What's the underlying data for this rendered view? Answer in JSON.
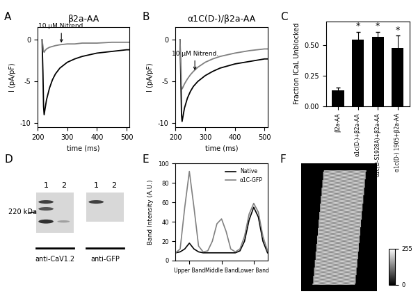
{
  "chart_data": [
    {
      "panel": "A",
      "type": "line",
      "title": "β2a-AA",
      "x_label": "time (ms)",
      "y_label": "I (pA/pF)",
      "x": [
        215,
        218,
        220,
        222,
        225,
        230,
        240,
        250,
        260,
        275,
        300,
        325,
        350,
        400,
        450,
        500,
        510
      ],
      "series": [
        {
          "color": "#000000",
          "values": [
            0,
            -4,
            -8,
            -9,
            -8.3,
            -7.2,
            -5.8,
            -4.8,
            -4.1,
            -3.4,
            -2.7,
            -2.3,
            -2.0,
            -1.6,
            -1.4,
            -1.2,
            -1.2
          ]
        },
        {
          "color": "#808080",
          "values": [
            0,
            -0.8,
            -1.4,
            -1.5,
            -1.3,
            -1.1,
            -0.9,
            -0.8,
            -0.7,
            -0.6,
            -0.5,
            -0.5,
            -0.4,
            -0.4,
            -0.3,
            -0.3,
            -0.3
          ]
        }
      ],
      "annotations": [
        {
          "text": "10 μM Nitrend.",
          "x": 280,
          "y": -0.6
        }
      ],
      "xlim": [
        200,
        510
      ],
      "xticks": [
        200,
        300,
        400,
        500
      ],
      "ylim": [
        -10.5,
        1.5
      ],
      "yticks": [
        -10,
        -5,
        0
      ]
    },
    {
      "panel": "B",
      "type": "line",
      "title": "α1C(D-)/β2a-AA",
      "x_label": "time (ms)",
      "y_label": "I (pA/pF)",
      "x": [
        215,
        218,
        220,
        222,
        225,
        230,
        240,
        250,
        260,
        275,
        300,
        325,
        350,
        400,
        450,
        500,
        510
      ],
      "series": [
        {
          "color": "#000000",
          "values": [
            0,
            -5,
            -9,
            -9.8,
            -9.2,
            -8.2,
            -7.0,
            -6.2,
            -5.6,
            -5.0,
            -4.3,
            -3.8,
            -3.4,
            -2.9,
            -2.6,
            -2.3,
            -2.3
          ]
        },
        {
          "color": "#808080",
          "values": [
            0,
            -3,
            -5.5,
            -5.9,
            -5.7,
            -5.3,
            -4.7,
            -4.2,
            -3.8,
            -3.3,
            -2.7,
            -2.3,
            -2.0,
            -1.6,
            -1.3,
            -1.1,
            -1.1
          ]
        }
      ],
      "annotations": [
        {
          "text": "10 μM Nitrend.",
          "x": 265,
          "y": -3.9
        }
      ],
      "xlim": [
        200,
        510
      ],
      "xticks": [
        200,
        300,
        400,
        500
      ],
      "ylim": [
        -10.5,
        1.5
      ],
      "yticks": [
        -10,
        -5,
        0
      ]
    },
    {
      "panel": "C",
      "type": "bar",
      "y_label": "Fraction ICaL Unblocked",
      "categories": [
        "β2a-AA",
        "α1c(D-)+β2a-AA",
        "α1c(D-S1928A)+β2a-AA",
        "α1c(D-) 1905+β2a-AA"
      ],
      "values": [
        0.13,
        0.55,
        0.57,
        0.48
      ],
      "errors": [
        0.02,
        0.06,
        0.04,
        0.1
      ],
      "marks": [
        null,
        "*",
        "*",
        "*"
      ],
      "color": "#000000",
      "ylim": [
        0,
        0.7
      ],
      "yticks": [
        {
          "value": 0,
          "label": "0.00"
        },
        {
          "value": 0.25,
          "label": "0.25"
        },
        {
          "value": 0.5,
          "label": "0.50"
        }
      ]
    },
    {
      "panel": "E",
      "type": "line",
      "y_label": "Band Intensity (A.U.)",
      "x": [
        0,
        1,
        2,
        3,
        4,
        5,
        6,
        7,
        8,
        9,
        10,
        11,
        12,
        13,
        14,
        15,
        16,
        17,
        18,
        19,
        20
      ],
      "series": [
        {
          "name": "Native",
          "color": "#000000",
          "values": [
            8,
            9,
            12,
            18,
            12,
            9,
            8,
            8,
            8,
            8,
            8,
            8,
            8,
            8,
            10,
            20,
            42,
            55,
            45,
            20,
            8
          ]
        },
        {
          "name": "α1C-GFP",
          "color": "#808080",
          "values": [
            8,
            12,
            55,
            92,
            55,
            15,
            9,
            10,
            20,
            38,
            43,
            30,
            12,
            9,
            12,
            25,
            48,
            59,
            50,
            25,
            10
          ]
        }
      ],
      "legend": "upper right",
      "xlim": [
        0,
        20
      ],
      "xticks": [
        {
          "value": 3,
          "label": "Upper Band"
        },
        {
          "value": 10,
          "label": "Middle Band"
        },
        {
          "value": 17,
          "label": "Lower Band"
        }
      ],
      "ylim": [
        0,
        100
      ],
      "yticks": [
        0,
        20,
        40,
        60,
        80,
        100
      ]
    }
  ],
  "blot_panel": {
    "panel": "D",
    "lane_labels": [
      "1",
      "2"
    ],
    "marker_label": "220 kDa",
    "blots": [
      "anti-CaV1.2",
      "anti-GFP"
    ]
  },
  "image_panel": {
    "panel": "F",
    "colorbar_range": [
      0,
      255
    ],
    "colorbar_ticks": [
      0,
      255
    ]
  }
}
